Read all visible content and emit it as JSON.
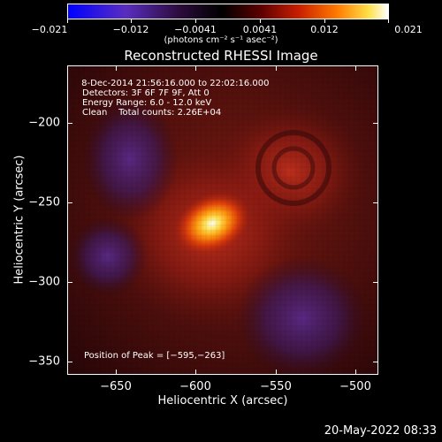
{
  "colorbar": {
    "tick_labels": [
      "−0.021",
      "−0.012",
      "−0.0041",
      "0.0041",
      "0.012",
      "0.021"
    ],
    "units_label": "(photons cm⁻² s⁻¹ asec⁻²)"
  },
  "title": "Reconstructed RHESSI Image",
  "info": {
    "line1": " 8-Dec-2014 21:56:16.000 to 22:02:16.000",
    "line2": "Detectors: 3F 6F 7F 9F, Att 0",
    "line3": "Energy Range: 6.0 - 12.0 keV",
    "line4": "Clean    Total counts: 2.26E+04",
    "peak": "Position of Peak = [−595,−263]"
  },
  "axes": {
    "x_title": "Heliocentric X (arcsec)",
    "y_title": "Heliocentric Y (arcsec)",
    "x_ticks": [
      "−650",
      "−600",
      "−550",
      "−500"
    ],
    "y_ticks": [
      "−200",
      "−250",
      "−300",
      "−350"
    ]
  },
  "timestamp": "20-May-2022 08:33",
  "colors": {
    "background": "#000000",
    "negative": "#0000ff",
    "positive_peak": "#ffffff"
  }
}
